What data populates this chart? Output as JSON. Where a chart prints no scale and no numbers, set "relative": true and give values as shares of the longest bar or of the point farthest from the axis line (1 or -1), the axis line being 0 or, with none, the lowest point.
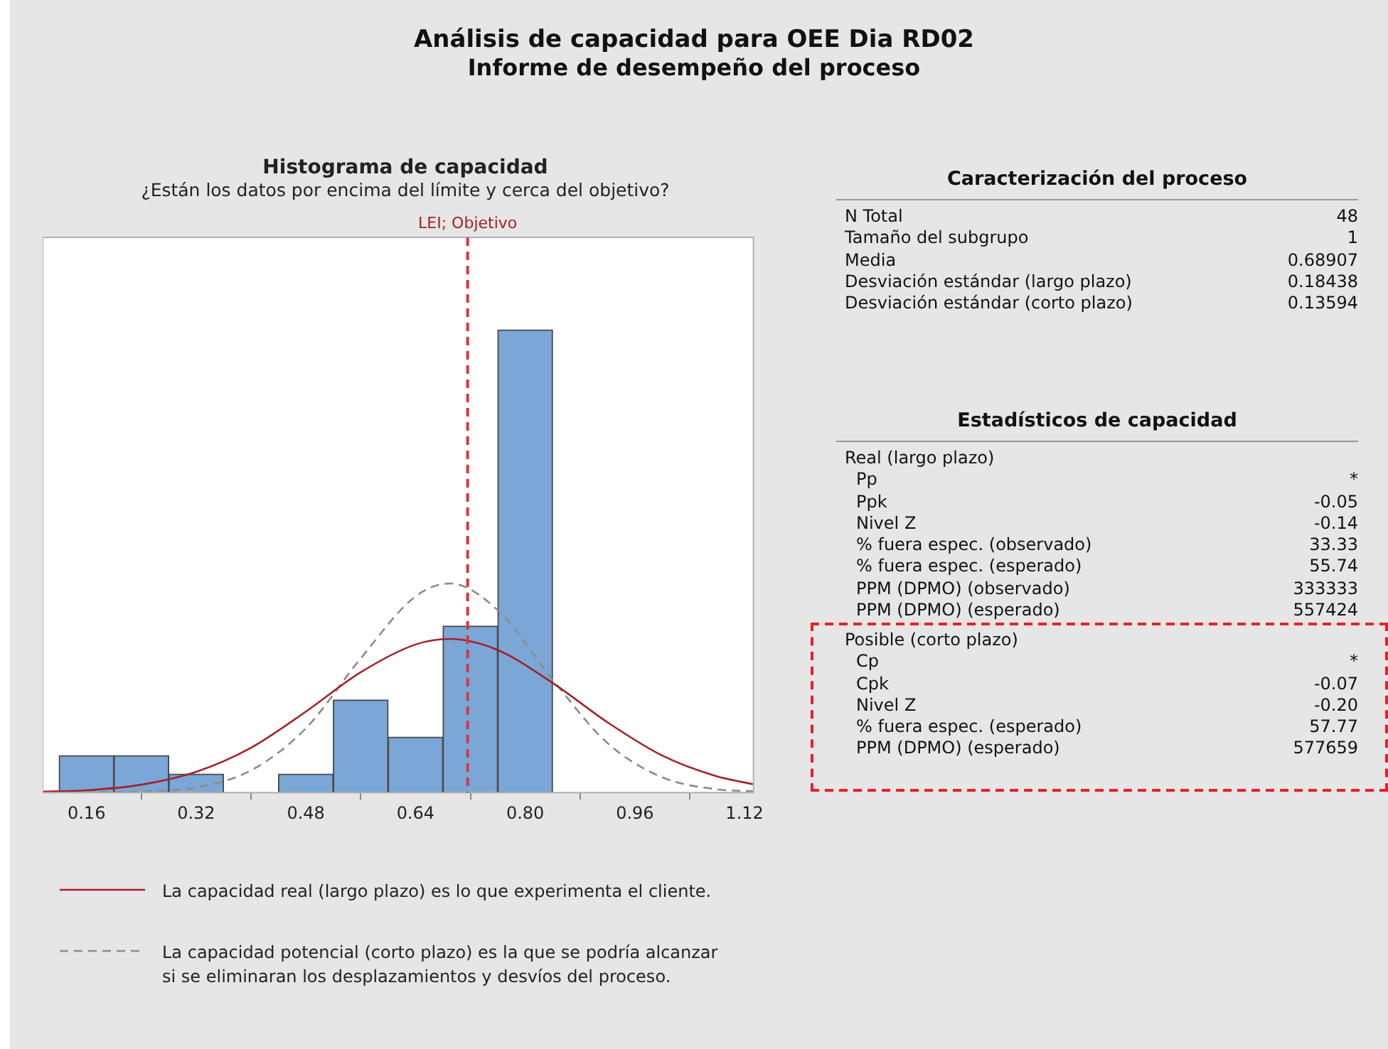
{
  "chart_data": [
    {
      "type": "other",
      "title": "Análisis de capacidad para OEE Dia RD02",
      "subtitle": "Informe de desempeño del proceso"
    },
    {
      "type": "histogram",
      "title": "Histograma de capacidad",
      "subtitle": "¿Están los datos por encima del límite y cerca del objetivo?",
      "relative": true,
      "bins": [
        0.12,
        0.2,
        0.28,
        0.36,
        0.44,
        0.52,
        0.6,
        0.68,
        0.76,
        0.84
      ],
      "values": [
        0.08,
        0.08,
        0.04,
        0,
        0.04,
        0.2,
        0.12,
        0.36,
        1
      ],
      "color": "#7ba7d7",
      "xlim": [
        0.096,
        1.133
      ],
      "xticks": [
        0.16,
        0.32,
        0.48,
        0.64,
        {
          "value": 0.8,
          "label": "0.80"
        },
        0.96,
        1.12
      ],
      "ref_lines": [
        {
          "axis": "x",
          "value": 0.716,
          "label": "LEI; Objetivo",
          "color": "#d9363e",
          "line_style": "dashed"
        }
      ],
      "legend": "bottom",
      "marker": "none",
      "series": [
        {
          "type": "line",
          "name": "La capacidad real (largo plazo) es lo que experimenta el cliente.",
          "color": "#a3222b",
          "line_style": "solid",
          "x": [
            0.096,
            0.16,
            0.24,
            0.32,
            0.4,
            0.48,
            0.56,
            0.64,
            0.69,
            0.76,
            0.84,
            0.92,
            1.0,
            1.08,
            1.133
          ],
          "values": [
            0.002,
            0.005,
            0.017,
            0.045,
            0.097,
            0.175,
            0.26,
            0.32,
            0.332,
            0.308,
            0.237,
            0.152,
            0.08,
            0.035,
            0.018
          ]
        },
        {
          "type": "line",
          "name": "La capacidad potencial (corto plazo) es la que se podría alcanzar si se eliminaran los desplazamientos y desvíos del proceso.",
          "color": "#8c8c8c",
          "line_style": "dashed",
          "x": [
            0.16,
            0.24,
            0.32,
            0.4,
            0.48,
            0.56,
            0.64,
            0.69,
            0.76,
            0.84,
            0.92,
            1.0,
            1.08,
            1.133
          ],
          "values": [
            0.001,
            0.002,
            0.011,
            0.048,
            0.139,
            0.29,
            0.424,
            0.452,
            0.394,
            0.244,
            0.107,
            0.033,
            0.007,
            0.003
          ]
        }
      ]
    },
    {
      "type": "other",
      "title": "Caracterización del proceso",
      "annotations": [
        "N Total",
        "48",
        "Tamaño del subgrupo",
        "1",
        "Media",
        "0.68907",
        "Desviación estándar (largo plazo)",
        "0.18438",
        "Desviación estándar (corto plazo)",
        "0.13594"
      ]
    },
    {
      "type": "other",
      "title": "Estadísticos de capacidad",
      "subtitle": "Real (largo plazo)",
      "annotations": [
        "Pp",
        "*",
        "Ppk",
        "-0.05",
        "Nivel Z",
        "-0.14",
        "% fuera espec. (observado)",
        "33.33",
        "% fuera espec. (esperado)",
        "55.74",
        "PPM (DPMO) (observado)",
        "333333",
        "PPM (DPMO) (esperado)",
        "557424"
      ]
    },
    {
      "type": "other",
      "subtitle": "Posible (corto plazo)",
      "annotations": [
        "Cp",
        "*",
        "Cpk",
        "-0.07",
        "Nivel Z",
        "-0.20",
        "% fuera espec. (esperado)",
        "57.77",
        "PPM (DPMO) (esperado)",
        "577659"
      ]
    }
  ]
}
